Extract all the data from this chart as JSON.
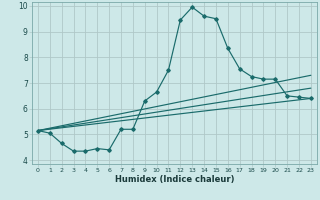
{
  "xlabel": "Humidex (Indice chaleur)",
  "background_color": "#cde8e8",
  "grid_color": "#b0c8c8",
  "line_color": "#1a6b6b",
  "xlim": [
    -0.5,
    23.5
  ],
  "ylim": [
    3.85,
    10.15
  ],
  "xticks": [
    0,
    1,
    2,
    3,
    4,
    5,
    6,
    7,
    8,
    9,
    10,
    11,
    12,
    13,
    14,
    15,
    16,
    17,
    18,
    19,
    20,
    21,
    22,
    23
  ],
  "yticks": [
    4,
    5,
    6,
    7,
    8,
    9,
    10
  ],
  "line1_x": [
    0,
    1,
    2,
    3,
    4,
    5,
    6,
    7,
    8,
    9,
    10,
    11,
    12,
    13,
    14,
    15,
    16,
    17,
    18,
    19,
    20,
    21,
    22,
    23
  ],
  "line1_y": [
    5.15,
    5.05,
    4.65,
    4.35,
    4.35,
    4.45,
    4.4,
    5.2,
    5.2,
    6.3,
    6.65,
    7.5,
    9.45,
    9.95,
    9.6,
    9.5,
    8.35,
    7.55,
    7.25,
    7.15,
    7.15,
    6.5,
    6.45,
    6.4
  ],
  "line2_x": [
    0,
    23
  ],
  "line2_y": [
    5.15,
    7.3
  ],
  "line3_x": [
    0,
    23
  ],
  "line3_y": [
    5.15,
    6.8
  ],
  "line4_x": [
    0,
    23
  ],
  "line4_y": [
    5.15,
    6.4
  ]
}
